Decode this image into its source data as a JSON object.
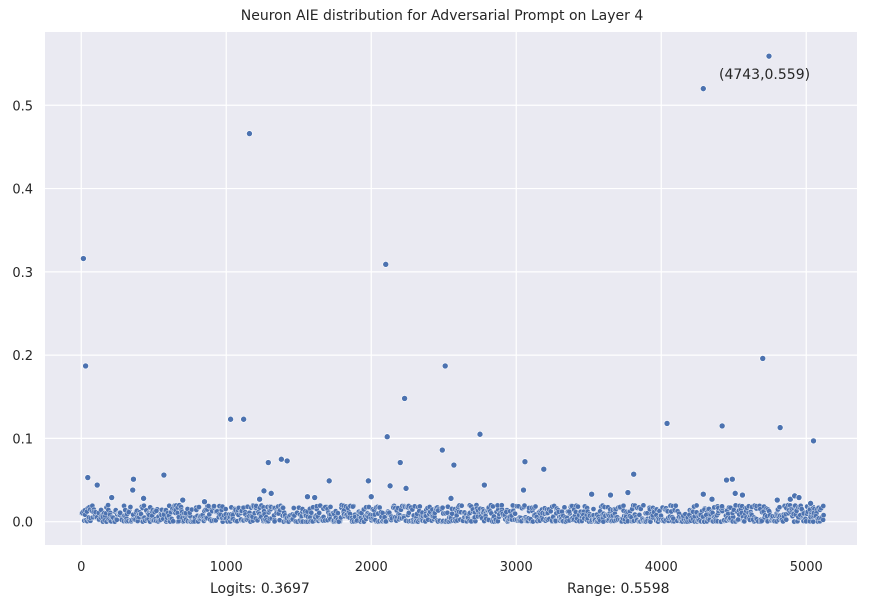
{
  "chart_data": {
    "type": "scatter",
    "title": "Neuron AIE distribution for Adversarial Prompt on Layer 4",
    "xlabel": "",
    "ylabel": "",
    "xlim": [
      -250,
      5350
    ],
    "ylim": [
      -0.028,
      0.588
    ],
    "xticks": [
      0,
      1000,
      2000,
      3000,
      4000,
      5000
    ],
    "yticks": [
      0.0,
      0.1,
      0.2,
      0.3,
      0.4,
      0.5
    ],
    "grid": true,
    "background": "#EAEAF2",
    "marker_color": "#4C72B0",
    "annotation": {
      "text": "(4743,0.559)",
      "x": 4743,
      "y": 0.559
    },
    "dense_band": {
      "x_range": [
        0,
        5119
      ],
      "y_range": [
        0.0,
        0.02
      ]
    },
    "points": [
      [
        15,
        0.316
      ],
      [
        30,
        0.187
      ],
      [
        45,
        0.053
      ],
      [
        110,
        0.044
      ],
      [
        210,
        0.029
      ],
      [
        360,
        0.051
      ],
      [
        355,
        0.038
      ],
      [
        430,
        0.028
      ],
      [
        570,
        0.056
      ],
      [
        700,
        0.026
      ],
      [
        850,
        0.024
      ],
      [
        1030,
        0.123
      ],
      [
        1120,
        0.123
      ],
      [
        1160,
        0.466
      ],
      [
        1230,
        0.027
      ],
      [
        1260,
        0.037
      ],
      [
        1290,
        0.071
      ],
      [
        1310,
        0.034
      ],
      [
        1380,
        0.075
      ],
      [
        1420,
        0.073
      ],
      [
        1560,
        0.03
      ],
      [
        1610,
        0.029
      ],
      [
        1710,
        0.049
      ],
      [
        1980,
        0.049
      ],
      [
        2000,
        0.03
      ],
      [
        2100,
        0.309
      ],
      [
        2110,
        0.102
      ],
      [
        2130,
        0.043
      ],
      [
        2200,
        0.071
      ],
      [
        2230,
        0.148
      ],
      [
        2240,
        0.04
      ],
      [
        2490,
        0.086
      ],
      [
        2510,
        0.187
      ],
      [
        2570,
        0.068
      ],
      [
        2550,
        0.028
      ],
      [
        2750,
        0.105
      ],
      [
        2780,
        0.044
      ],
      [
        3050,
        0.038
      ],
      [
        3060,
        0.072
      ],
      [
        3190,
        0.063
      ],
      [
        3520,
        0.033
      ],
      [
        3650,
        0.032
      ],
      [
        3770,
        0.035
      ],
      [
        3810,
        0.057
      ],
      [
        4040,
        0.118
      ],
      [
        4290,
        0.52
      ],
      [
        4290,
        0.033
      ],
      [
        4350,
        0.027
      ],
      [
        4420,
        0.115
      ],
      [
        4450,
        0.05
      ],
      [
        4490,
        0.051
      ],
      [
        4510,
        0.034
      ],
      [
        4560,
        0.032
      ],
      [
        4700,
        0.196
      ],
      [
        4743,
        0.559
      ],
      [
        4820,
        0.113
      ],
      [
        4800,
        0.026
      ],
      [
        4890,
        0.027
      ],
      [
        4920,
        0.031
      ],
      [
        4950,
        0.029
      ],
      [
        5030,
        0.022
      ],
      [
        5050,
        0.097
      ]
    ]
  },
  "footer": {
    "logits": "Logits: 0.3697",
    "range": "Range: 0.5598"
  }
}
